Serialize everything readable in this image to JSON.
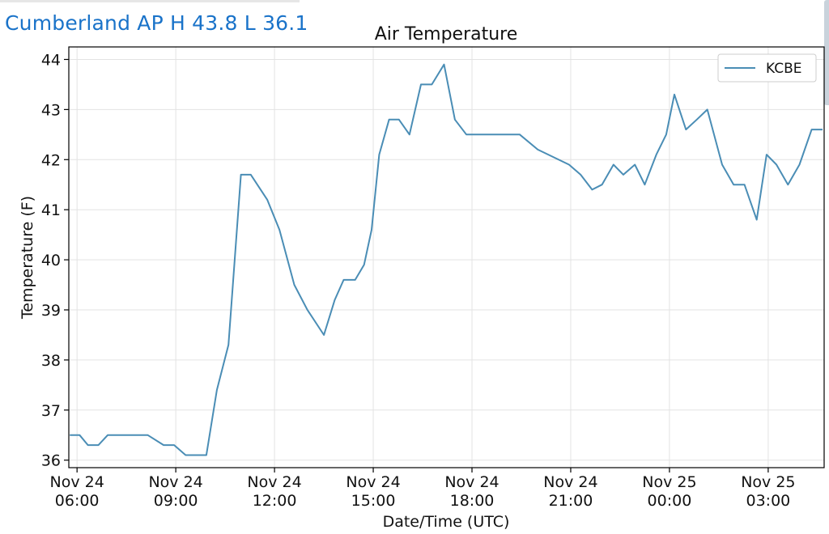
{
  "header": {
    "station_title": "Cumberland AP H 43.8 L 36.1"
  },
  "chart_data": {
    "type": "line",
    "title": "Air Temperature",
    "xlabel": "Date/Time (UTC)",
    "ylabel": "Temperature (F)",
    "ylim": [
      35.85,
      44.25
    ],
    "yticks": [
      36,
      37,
      38,
      39,
      40,
      41,
      42,
      43,
      44
    ],
    "x_hours_range": [
      5.75,
      28.7
    ],
    "xticks": [
      {
        "hour": 6,
        "line1": "Nov 24",
        "line2": "06:00"
      },
      {
        "hour": 9,
        "line1": "Nov 24",
        "line2": "09:00"
      },
      {
        "hour": 12,
        "line1": "Nov 24",
        "line2": "12:00"
      },
      {
        "hour": 15,
        "line1": "Nov 24",
        "line2": "15:00"
      },
      {
        "hour": 18,
        "line1": "Nov 24",
        "line2": "18:00"
      },
      {
        "hour": 21,
        "line1": "Nov 24",
        "line2": "21:00"
      },
      {
        "hour": 24,
        "line1": "Nov 25",
        "line2": "00:00"
      },
      {
        "hour": 27,
        "line1": "Nov 25",
        "line2": "03:00"
      }
    ],
    "grid": true,
    "legend_position": "top-right",
    "series": [
      {
        "name": "KCBE",
        "color": "#4a8db5",
        "hours": [
          5.78,
          6.08,
          6.33,
          6.65,
          6.93,
          7.15,
          7.65,
          8.15,
          8.63,
          8.95,
          9.3,
          9.65,
          9.93,
          10.25,
          10.6,
          10.98,
          11.28,
          11.78,
          12.15,
          12.6,
          13.0,
          13.5,
          13.83,
          14.1,
          14.45,
          14.72,
          14.95,
          15.18,
          15.48,
          15.78,
          16.1,
          16.45,
          16.78,
          17.15,
          17.48,
          17.83,
          18.18,
          18.5,
          18.95,
          19.45,
          20.0,
          20.95,
          21.3,
          21.65,
          21.95,
          22.3,
          22.6,
          22.95,
          23.25,
          23.6,
          23.9,
          24.15,
          24.5,
          24.83,
          25.15,
          25.6,
          25.95,
          26.28,
          26.65,
          26.95,
          27.25,
          27.6,
          27.95,
          28.32,
          28.65
        ],
        "values": [
          36.5,
          36.5,
          36.3,
          36.3,
          36.5,
          36.5,
          36.5,
          36.5,
          36.3,
          36.3,
          36.1,
          36.1,
          36.1,
          37.4,
          38.3,
          41.7,
          41.7,
          41.2,
          40.6,
          39.5,
          39.0,
          38.5,
          39.2,
          39.6,
          39.6,
          39.9,
          40.6,
          42.1,
          42.8,
          42.8,
          42.5,
          43.5,
          43.5,
          43.9,
          42.8,
          42.5,
          42.5,
          42.5,
          42.5,
          42.5,
          42.2,
          41.9,
          41.7,
          41.4,
          41.5,
          41.9,
          41.7,
          41.9,
          41.5,
          42.1,
          42.5,
          43.3,
          42.6,
          42.8,
          43.0,
          41.9,
          41.5,
          41.5,
          40.8,
          42.1,
          41.9,
          41.5,
          41.9,
          42.6,
          42.6
        ]
      }
    ]
  }
}
